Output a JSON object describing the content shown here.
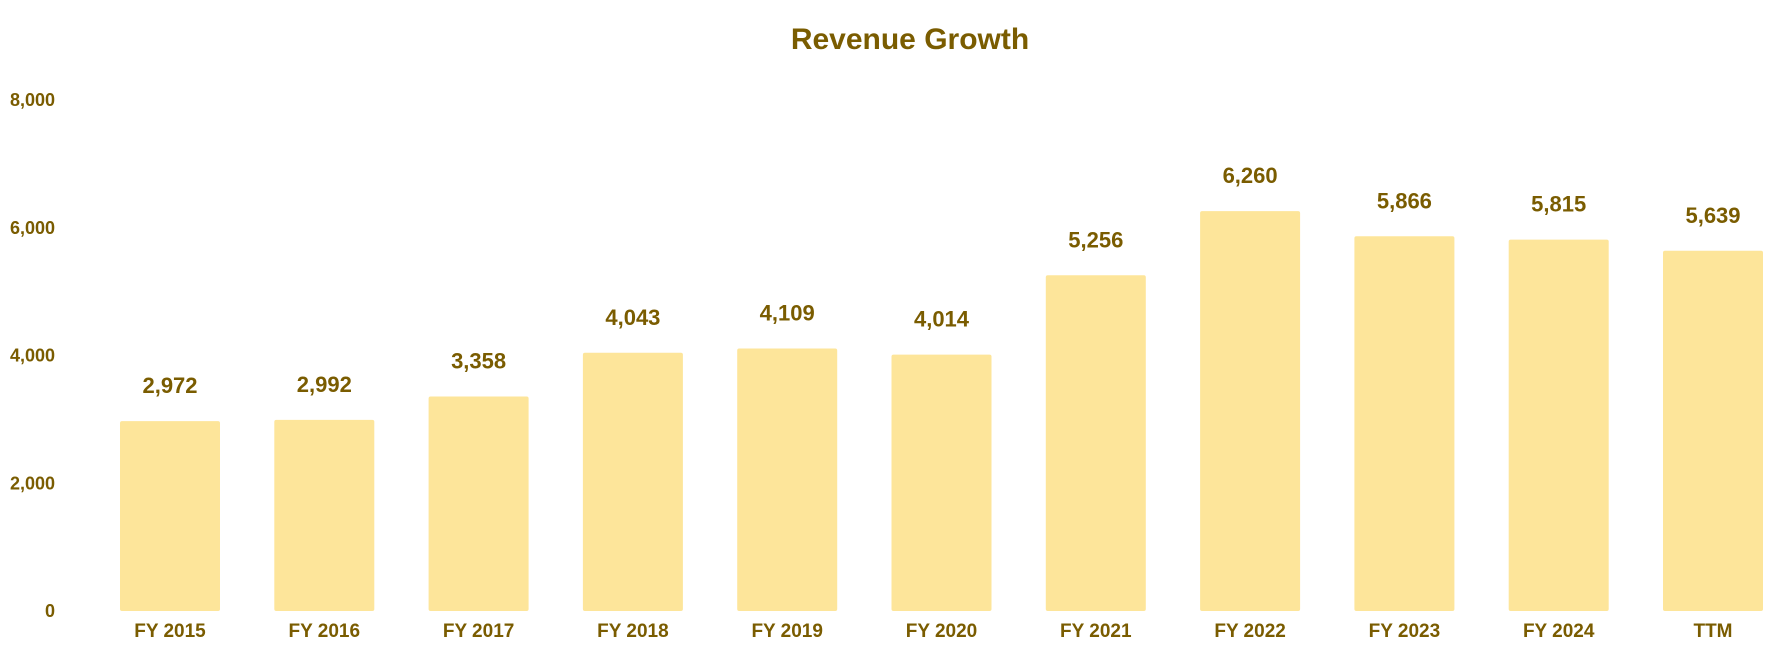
{
  "colors": {
    "text": "#7a5c00",
    "bar": "#fde59a",
    "background": "#ffffff"
  },
  "chart_data": {
    "type": "bar",
    "title": "Revenue Growth",
    "xlabel": "",
    "ylabel": "",
    "categories": [
      "FY 2015",
      "FY 2016",
      "FY 2017",
      "FY 2018",
      "FY 2019",
      "FY 2020",
      "FY 2021",
      "FY 2022",
      "FY 2023",
      "FY 2024",
      "TTM"
    ],
    "values": [
      2972,
      2992,
      3358,
      4043,
      4109,
      4014,
      5256,
      6260,
      5866,
      5815,
      5639
    ],
    "value_labels": [
      "2,972",
      "2,992",
      "3,358",
      "4,043",
      "4,109",
      "4,014",
      "5,256",
      "6,260",
      "5,866",
      "5,815",
      "5,639"
    ],
    "yticks": [
      0,
      2000,
      4000,
      6000,
      8000
    ],
    "ytick_labels": [
      "0",
      "2,000",
      "4,000",
      "6,000",
      "8,000"
    ],
    "ylim": [
      0,
      8000
    ],
    "grid": false,
    "legend": "none"
  }
}
